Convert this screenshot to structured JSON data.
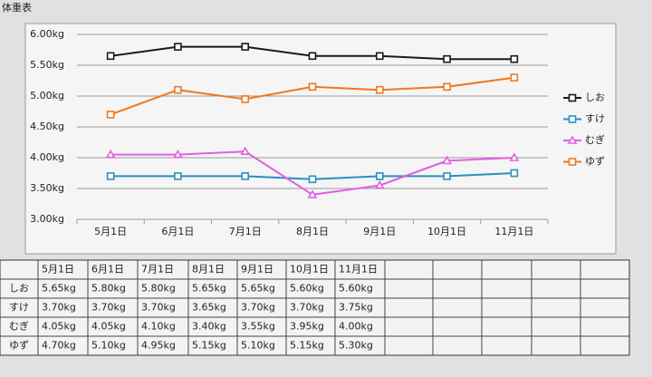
{
  "sheet_title": "体重表",
  "chart_data": {
    "type": "line",
    "categories": [
      "5月1日",
      "6月1日",
      "7月1日",
      "8月1日",
      "9月1日",
      "10月1日",
      "11月1日"
    ],
    "series": [
      {
        "name": "しお",
        "color": "#1a1a1a",
        "marker": "square",
        "values": [
          5.65,
          5.8,
          5.8,
          5.65,
          5.65,
          5.6,
          5.6
        ]
      },
      {
        "name": "すけ",
        "color": "#2a8fc0",
        "marker": "square",
        "values": [
          3.7,
          3.7,
          3.7,
          3.65,
          3.7,
          3.7,
          3.75
        ]
      },
      {
        "name": "むぎ",
        "color": "#e060e0",
        "marker": "triangle",
        "values": [
          4.05,
          4.05,
          4.1,
          3.4,
          3.55,
          3.95,
          4.0
        ]
      },
      {
        "name": "ゆず",
        "color": "#f07820",
        "marker": "square",
        "values": [
          4.7,
          5.1,
          4.95,
          5.15,
          5.1,
          5.15,
          5.3
        ]
      }
    ],
    "ylim": [
      3.0,
      6.0
    ],
    "yticks": [
      {
        "value": 3.0,
        "label": "3.00kg"
      },
      {
        "value": 3.5,
        "label": "3.50kg"
      },
      {
        "value": 4.0,
        "label": "4.00kg"
      },
      {
        "value": 4.5,
        "label": "4.50kg"
      },
      {
        "value": 5.0,
        "label": "5.00kg"
      },
      {
        "value": 5.5,
        "label": "5.50kg"
      },
      {
        "value": 6.0,
        "label": "6.00kg"
      }
    ],
    "grid": true,
    "legend": "right"
  },
  "table": {
    "header": [
      "5月1日",
      "6月1日",
      "7月1日",
      "8月1日",
      "9月1日",
      "10月1日",
      "11月1日"
    ],
    "rows": [
      {
        "label": "しお",
        "cells": [
          "5.65kg",
          "5.80kg",
          "5.80kg",
          "5.65kg",
          "5.65kg",
          "5.60kg",
          "5.60kg"
        ]
      },
      {
        "label": "すけ",
        "cells": [
          "3.70kg",
          "3.70kg",
          "3.70kg",
          "3.65kg",
          "3.70kg",
          "3.70kg",
          "3.75kg"
        ]
      },
      {
        "label": "むぎ",
        "cells": [
          "4.05kg",
          "4.05kg",
          "4.10kg",
          "3.40kg",
          "3.55kg",
          "3.95kg",
          "4.00kg"
        ]
      },
      {
        "label": "ゆず",
        "cells": [
          "4.70kg",
          "5.10kg",
          "4.95kg",
          "5.15kg",
          "5.10kg",
          "5.15kg",
          "5.30kg"
        ]
      }
    ]
  }
}
